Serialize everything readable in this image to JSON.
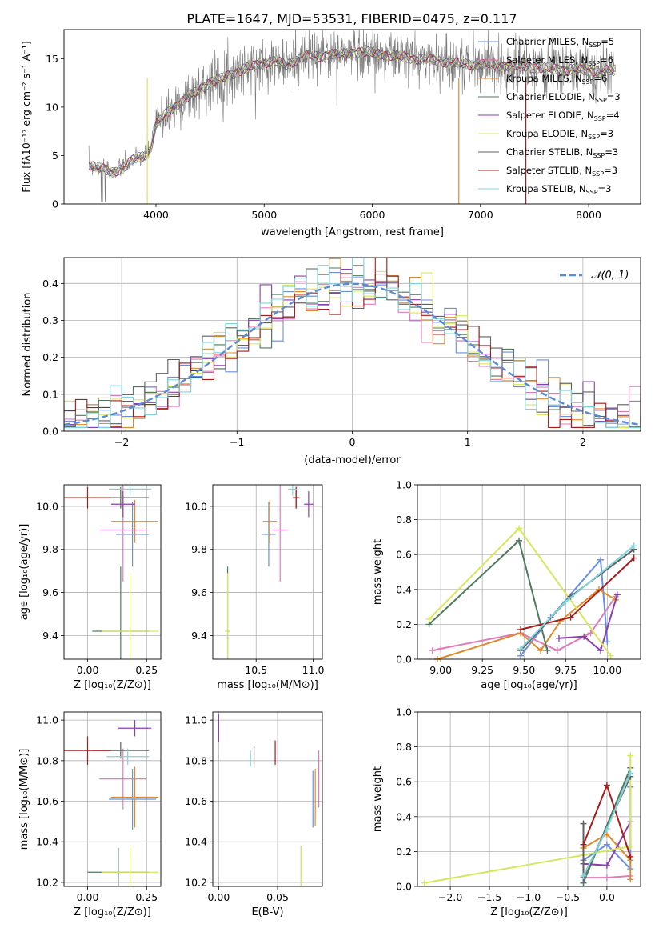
{
  "figure_title": "PLATE=1647, MJD=53531, FIBERID=0475, z=0.117",
  "colors": {
    "chabrier_miles": "#6a8ee0",
    "salpeter_miles": "#e07bbb",
    "kroupa_miles": "#e08a2e",
    "chabrier_elodie": "#4f7a5e",
    "salpeter_elodie": "#8a3fb0",
    "kroupa_elodie": "#d6e85a",
    "chabrier_stelib": "#606060",
    "salpeter_stelib": "#a81c1c",
    "kroupa_stelib": "#7fd4dc",
    "normal_curve": "#5b8ad6",
    "grid": "#b0b0b0"
  },
  "chart_data": [
    {
      "id": "spectrum",
      "type": "line",
      "xlabel": "wavelength [Angstrom, rest frame]",
      "ylabel": "Flux [fλ10⁻¹⁷ erg cm⁻² s⁻¹ A⁻¹]",
      "xlim": [
        3150,
        8480
      ],
      "ylim": [
        0,
        18
      ],
      "xticks": [
        "4000",
        "5000",
        "6000",
        "7000",
        "8000"
      ],
      "yticks": [
        "0",
        "5",
        "10",
        "15"
      ],
      "grid": false,
      "legend_position": "top-right",
      "continuum": {
        "x": [
          3380,
          3500,
          3600,
          3700,
          3800,
          3900,
          3950,
          4000,
          4100,
          4200,
          4300,
          4400,
          4500,
          4600,
          4700,
          4800,
          4900,
          5000,
          5100,
          5200,
          5300,
          5400,
          5500,
          5600,
          5700,
          5800,
          5900,
          6000,
          6200,
          6400,
          6600,
          6800,
          7000,
          7200,
          7400,
          7600,
          7800,
          8000,
          8250
        ],
        "y": [
          4.1,
          3.6,
          3.3,
          3.8,
          4.6,
          5.1,
          5.6,
          8.2,
          9.4,
          10.3,
          11.0,
          11.8,
          12.6,
          12.9,
          13.4,
          13.9,
          14.2,
          14.6,
          14.8,
          14.3,
          14.9,
          15.3,
          15.2,
          15.5,
          15.4,
          15.6,
          15.7,
          15.6,
          15.3,
          15.0,
          14.8,
          14.5,
          14.4,
          14.3,
          14.2,
          14.0,
          13.9,
          13.8,
          13.7
        ]
      },
      "series": [
        {
          "name": "Chabrier MILES, N",
          "sub": "SSP",
          "suffix": "=5",
          "color": "#6a8ee0"
        },
        {
          "name": "Salpeter MILES, N",
          "sub": "SSP",
          "suffix": "=6",
          "color": "#e07bbb"
        },
        {
          "name": "Kroupa MILES, N",
          "sub": "SSP",
          "suffix": "=6",
          "color": "#e08a2e"
        },
        {
          "name": "Chabrier ELODIE, N",
          "sub": "SSP",
          "suffix": "=3",
          "color": "#4f7a5e"
        },
        {
          "name": "Salpeter ELODIE, N",
          "sub": "SSP",
          "suffix": "=4",
          "color": "#8a3fb0"
        },
        {
          "name": "Kroupa ELODIE, N",
          "sub": "SSP",
          "suffix": "=3",
          "color": "#d6e85a"
        },
        {
          "name": "Chabrier STELIB, N",
          "sub": "SSP",
          "suffix": "=3",
          "color": "#606060"
        },
        {
          "name": "Salpeter STELIB, N",
          "sub": "SSP",
          "suffix": "=3",
          "color": "#a81c1c"
        },
        {
          "name": "Kroupa STELIB, N",
          "sub": "SSP",
          "suffix": "=3",
          "color": "#7fd4dc"
        }
      ]
    },
    {
      "id": "residuals",
      "type": "line",
      "xlabel": "(data-model)/error",
      "ylabel": "Normed distribution",
      "xlim": [
        -2.5,
        2.5
      ],
      "ylim": [
        0,
        0.47
      ],
      "xticks": [
        "−2",
        "−1",
        "0",
        "1",
        "2"
      ],
      "yticks": [
        "0.0",
        "0.1",
        "0.2",
        "0.3",
        "0.4"
      ],
      "grid": true,
      "legend": "𝒩(0, 1)",
      "legend_position": "top-right",
      "bin_width": 0.1,
      "series": [
        {
          "name": "",
          "color": "#6a8ee0"
        },
        {
          "name": "",
          "color": "#e07bbb"
        },
        {
          "name": "",
          "color": "#e08a2e"
        },
        {
          "name": "",
          "color": "#4f7a5e"
        },
        {
          "name": "",
          "color": "#8a3fb0"
        },
        {
          "name": "",
          "color": "#d6e85a"
        },
        {
          "name": "",
          "color": "#606060"
        },
        {
          "name": "",
          "color": "#a81c1c"
        },
        {
          "name": "",
          "color": "#7fd4dc"
        }
      ]
    },
    {
      "id": "age_vs_Z",
      "type": "scatter",
      "xlabel": "Z [log₁₀(Z/Z⊙)]",
      "ylabel": "age  [log₁₀(age/yr)]",
      "xlim": [
        -0.1,
        0.31
      ],
      "ylim": [
        9.29,
        10.1
      ],
      "xticks": [
        {
          "v": 0.0,
          "t": "0.00"
        },
        {
          "v": 0.25,
          "t": "0.25"
        }
      ],
      "yticks": [
        {
          "v": 9.4,
          "t": "9.4"
        },
        {
          "v": 9.6,
          "t": "9.6"
        },
        {
          "v": 9.8,
          "t": "9.8"
        },
        {
          "v": 10.0,
          "t": "10.0"
        }
      ],
      "points": [
        {
          "series": "Chabrier MILES",
          "x": 0.19,
          "xerr": 0.07,
          "y": 9.87,
          "yerr": 0.15
        },
        {
          "series": "Salpeter MILES",
          "x": 0.15,
          "xerr": 0.1,
          "y": 9.89,
          "yerr": 0.24
        },
        {
          "series": "Kroupa MILES",
          "x": 0.2,
          "xerr": 0.1,
          "y": 9.93,
          "yerr": 0.1
        },
        {
          "series": "Chabrier ELODIE",
          "x": 0.14,
          "xerr": 0.12,
          "y": 9.42,
          "yerr": 0.3
        },
        {
          "series": "Salpeter ELODIE",
          "x": 0.15,
          "xerr": 0.05,
          "y": 10.01,
          "yerr": 0.06
        },
        {
          "series": "Kroupa ELODIE",
          "x": 0.18,
          "xerr": 0.12,
          "y": 9.42,
          "yerr": 0.27
        },
        {
          "series": "Chabrier STELIB",
          "x": 0.14,
          "xerr": 0.12,
          "y": 10.04,
          "yerr": 0.05
        },
        {
          "series": "Salpeter STELIB",
          "x": 0.0,
          "xerr": 0.1,
          "y": 10.04,
          "yerr": 0.05
        },
        {
          "series": "Kroupa STELIB",
          "x": 0.18,
          "xerr": 0.09,
          "y": 10.08,
          "yerr": 0.03
        }
      ]
    },
    {
      "id": "age_vs_mass",
      "type": "scatter",
      "xlabel": "mass [log₁₀(M/M⊙)]",
      "ylabel": "",
      "xlim": [
        10.12,
        11.08
      ],
      "ylim": [
        9.29,
        10.1
      ],
      "xticks": [
        {
          "v": 10.5,
          "t": "10.5"
        },
        {
          "v": 11.0,
          "t": "11.0"
        }
      ],
      "yticks": [
        {
          "v": 9.4,
          "t": "9.4"
        },
        {
          "v": 9.6,
          "t": "9.6"
        },
        {
          "v": 9.8,
          "t": "9.8"
        },
        {
          "v": 10.0,
          "t": "10.0"
        }
      ],
      "points": [
        {
          "series": "Chabrier MILES",
          "x": 10.61,
          "xerr": 0.06,
          "y": 9.87,
          "yerr": 0.15
        },
        {
          "series": "Salpeter MILES",
          "x": 10.71,
          "xerr": 0.07,
          "y": 9.89,
          "yerr": 0.24
        },
        {
          "series": "Kroupa MILES",
          "x": 10.62,
          "xerr": 0.06,
          "y": 9.93,
          "yerr": 0.1
        },
        {
          "series": "Chabrier ELODIE",
          "x": 10.25,
          "xerr": 0.02,
          "y": 9.42,
          "yerr": 0.3
        },
        {
          "series": "Salpeter ELODIE",
          "x": 10.96,
          "xerr": 0.04,
          "y": 10.01,
          "yerr": 0.06
        },
        {
          "series": "Kroupa ELODIE",
          "x": 10.25,
          "xerr": 0.02,
          "y": 9.42,
          "yerr": 0.27
        },
        {
          "series": "Chabrier STELIB",
          "x": 10.85,
          "xerr": 0.03,
          "y": 10.04,
          "yerr": 0.05
        },
        {
          "series": "Salpeter STELIB",
          "x": 10.85,
          "xerr": 0.03,
          "y": 10.04,
          "yerr": 0.05
        },
        {
          "series": "Kroupa STELIB",
          "x": 10.82,
          "xerr": 0.04,
          "y": 10.08,
          "yerr": 0.03
        }
      ]
    },
    {
      "id": "weight_vs_age",
      "type": "line",
      "xlabel": "age  [log₁₀(age/yr)]",
      "ylabel": "mass weight",
      "xlim": [
        8.86,
        10.2
      ],
      "ylim": [
        0,
        1.0
      ],
      "xticks": [
        {
          "v": 9.0,
          "t": "9.00"
        },
        {
          "v": 9.25,
          "t": "9.25"
        },
        {
          "v": 9.5,
          "t": "9.50"
        },
        {
          "v": 9.75,
          "t": "9.75"
        },
        {
          "v": 10.0,
          "t": "10.00"
        }
      ],
      "yticks": [
        {
          "v": 0,
          "t": "0.0"
        },
        {
          "v": 0.2,
          "t": "0.2"
        },
        {
          "v": 0.4,
          "t": "0.4"
        },
        {
          "v": 0.6,
          "t": "0.6"
        },
        {
          "v": 0.8,
          "t": "0.8"
        },
        {
          "v": 1.0,
          "t": "1.0"
        }
      ],
      "grid": true,
      "series": [
        {
          "name": "Chabrier MILES",
          "x": [
            9.48,
            9.66,
            9.96,
            10.0
          ],
          "y": [
            0.02,
            0.24,
            0.57,
            0.1
          ]
        },
        {
          "name": "Salpeter MILES",
          "x": [
            8.95,
            9.0,
            9.48,
            9.7,
            9.9,
            10.05
          ],
          "y": [
            0.05,
            0.06,
            0.15,
            0.05,
            0.15,
            0.36
          ]
        },
        {
          "name": "Kroupa MILES",
          "x": [
            8.98,
            9.48,
            9.6,
            9.72,
            9.95,
            10.05
          ],
          "y": [
            0.0,
            0.15,
            0.05,
            0.22,
            0.4,
            0.34
          ]
        },
        {
          "name": "Chabrier ELODIE",
          "x": [
            8.93,
            9.47,
            9.64
          ],
          "y": [
            0.2,
            0.68,
            0.05
          ]
        },
        {
          "name": "Salpeter ELODIE",
          "x": [
            9.71,
            9.86,
            9.96,
            10.06
          ],
          "y": [
            0.12,
            0.13,
            0.05,
            0.37
          ]
        },
        {
          "name": "Kroupa ELODIE",
          "x": [
            8.93,
            9.47,
            10.02
          ],
          "y": [
            0.23,
            0.75,
            0.02
          ]
        },
        {
          "name": "Chabrier STELIB",
          "x": [
            9.48,
            9.78,
            10.16
          ],
          "y": [
            0.05,
            0.36,
            0.63
          ]
        },
        {
          "name": "Salpeter STELIB",
          "x": [
            9.48,
            9.78,
            10.16
          ],
          "y": [
            0.17,
            0.24,
            0.58
          ]
        },
        {
          "name": "Kroupa STELIB",
          "x": [
            9.48,
            9.75,
            10.16
          ],
          "y": [
            0.06,
            0.33,
            0.65
          ]
        }
      ]
    },
    {
      "id": "mass_vs_Z",
      "type": "scatter",
      "xlabel": "Z [log₁₀(Z/Z⊙)]",
      "ylabel": "mass [log₁₀(M/M⊙)]",
      "xlim": [
        -0.1,
        0.31
      ],
      "ylim": [
        10.18,
        11.04
      ],
      "xticks": [
        {
          "v": 0.0,
          "t": "0.00"
        },
        {
          "v": 0.25,
          "t": "0.25"
        }
      ],
      "yticks": [
        {
          "v": 10.2,
          "t": "10.2"
        },
        {
          "v": 10.4,
          "t": "10.4"
        },
        {
          "v": 10.6,
          "t": "10.6"
        },
        {
          "v": 10.8,
          "t": "10.8"
        },
        {
          "v": 11.0,
          "t": "11.0"
        }
      ],
      "points": [
        {
          "series": "Chabrier MILES",
          "x": 0.19,
          "xerr": 0.1,
          "y": 10.61,
          "yerr": 0.15
        },
        {
          "series": "Salpeter MILES",
          "x": 0.15,
          "xerr": 0.1,
          "y": 10.71,
          "yerr": 0.15
        },
        {
          "series": "Kroupa MILES",
          "x": 0.2,
          "xerr": 0.1,
          "y": 10.62,
          "yerr": 0.15
        },
        {
          "series": "Chabrier ELODIE",
          "x": 0.13,
          "xerr": 0.13,
          "y": 10.25,
          "yerr": 0.12
        },
        {
          "series": "Salpeter ELODIE",
          "x": 0.2,
          "xerr": 0.07,
          "y": 10.96,
          "yerr": 0.04
        },
        {
          "series": "Kroupa ELODIE",
          "x": 0.18,
          "xerr": 0.12,
          "y": 10.25,
          "yerr": 0.12
        },
        {
          "series": "Chabrier STELIB",
          "x": 0.14,
          "xerr": 0.12,
          "y": 10.85,
          "yerr": 0.04
        },
        {
          "series": "Salpeter STELIB",
          "x": 0.0,
          "xerr": 0.1,
          "y": 10.85,
          "yerr": 0.07
        },
        {
          "series": "Kroupa STELIB",
          "x": 0.17,
          "xerr": 0.09,
          "y": 10.82,
          "yerr": 0.04
        }
      ]
    },
    {
      "id": "mass_vs_ebv",
      "type": "scatter",
      "xlabel": "E(B-V)",
      "ylabel": "",
      "xlim": [
        -0.005,
        0.088
      ],
      "ylim": [
        10.18,
        11.04
      ],
      "xticks": [
        {
          "v": 0.0,
          "t": "0.00"
        },
        {
          "v": 0.05,
          "t": "0.05"
        }
      ],
      "yticks": [
        {
          "v": 10.2,
          "t": "10.2"
        },
        {
          "v": 10.4,
          "t": "10.4"
        },
        {
          "v": 10.6,
          "t": "10.6"
        },
        {
          "v": 10.8,
          "t": "10.8"
        },
        {
          "v": 11.0,
          "t": "11.0"
        }
      ],
      "points": [
        {
          "series": "Chabrier MILES",
          "x": 0.08,
          "xerr": 0.0,
          "y": 10.61,
          "yerr": 0.14
        },
        {
          "series": "Salpeter MILES",
          "x": 0.085,
          "xerr": 0.0,
          "y": 10.71,
          "yerr": 0.14
        },
        {
          "series": "Kroupa MILES",
          "x": 0.082,
          "xerr": 0.0,
          "y": 10.62,
          "yerr": 0.14
        },
        {
          "series": "Chabrier ELODIE",
          "x": 0.07,
          "xerr": 0.0,
          "y": 10.25,
          "yerr": 0.13
        },
        {
          "series": "Salpeter ELODIE",
          "x": 0.0,
          "xerr": 0.0,
          "y": 10.96,
          "yerr": 0.07
        },
        {
          "series": "Kroupa ELODIE",
          "x": 0.07,
          "xerr": 0.0,
          "y": 10.25,
          "yerr": 0.13
        },
        {
          "series": "Chabrier STELIB",
          "x": 0.03,
          "xerr": 0.0,
          "y": 10.82,
          "yerr": 0.05
        },
        {
          "series": "Salpeter STELIB",
          "x": 0.048,
          "xerr": 0.0,
          "y": 10.84,
          "yerr": 0.06
        },
        {
          "series": "Kroupa STELIB",
          "x": 0.027,
          "xerr": 0.0,
          "y": 10.81,
          "yerr": 0.04
        }
      ]
    },
    {
      "id": "weight_vs_Z",
      "type": "line",
      "xlabel": "Z [log₁₀(Z/Z⊙)]",
      "ylabel": "mass weight",
      "xlim": [
        -2.42,
        0.43
      ],
      "ylim": [
        0,
        1.0
      ],
      "xticks": [
        {
          "v": -2.0,
          "t": "−2.0"
        },
        {
          "v": -1.5,
          "t": "−1.5"
        },
        {
          "v": -1.0,
          "t": "−1.0"
        },
        {
          "v": -0.5,
          "t": "−0.5"
        },
        {
          "v": 0.0,
          "t": "0.0"
        }
      ],
      "yticks": [
        {
          "v": 0,
          "t": "0.0"
        },
        {
          "v": 0.2,
          "t": "0.2"
        },
        {
          "v": 0.4,
          "t": "0.4"
        },
        {
          "v": 0.6,
          "t": "0.6"
        },
        {
          "v": 0.8,
          "t": "0.8"
        },
        {
          "v": 1.0,
          "t": "1.0"
        }
      ],
      "grid": true,
      "series": [
        {
          "name": "Chabrier MILES",
          "x": [
            -0.3,
            -0.3,
            0.0,
            0.3,
            0.3
          ],
          "y": [
            0.02,
            0.15,
            0.24,
            0.1,
            0.57
          ]
        },
        {
          "name": "Salpeter MILES",
          "x": [
            -0.3,
            0.0,
            0.3
          ],
          "y": [
            0.05,
            0.05,
            0.06
          ]
        },
        {
          "name": "Kroupa MILES",
          "x": [
            -0.3,
            -0.3,
            0.0,
            0.3,
            0.3
          ],
          "y": [
            0.05,
            0.22,
            0.3,
            0.15,
            0.04
          ]
        },
        {
          "name": "Chabrier ELODIE",
          "x": [
            -0.3,
            0.3
          ],
          "y": [
            0.02,
            0.68
          ]
        },
        {
          "name": "Salpeter ELODIE",
          "x": [
            -0.3,
            0.0,
            0.3
          ],
          "y": [
            0.13,
            0.12,
            0.37
          ]
        },
        {
          "name": "Kroupa ELODIE",
          "x": [
            -2.33,
            -0.3,
            0.3,
            0.3
          ],
          "y": [
            0.02,
            0.18,
            0.23,
            0.75
          ]
        },
        {
          "name": "Chabrier STELIB",
          "x": [
            -0.3,
            -0.3,
            0.3
          ],
          "y": [
            0.36,
            0.05,
            0.63
          ]
        },
        {
          "name": "Salpeter STELIB",
          "x": [
            -0.3,
            0.0,
            0.3
          ],
          "y": [
            0.24,
            0.58,
            0.17
          ]
        },
        {
          "name": "Kroupa STELIB",
          "x": [
            -0.3,
            0.0,
            0.3
          ],
          "y": [
            0.06,
            0.33,
            0.65
          ]
        }
      ]
    }
  ]
}
